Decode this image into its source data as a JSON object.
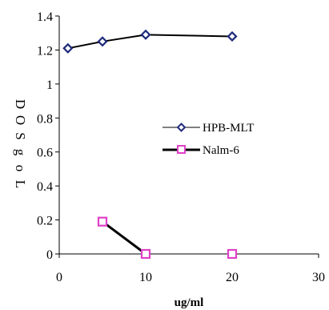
{
  "chart_data": {
    "type": "line",
    "xlabel": "ug/ml",
    "ylabel": "Log SOD",
    "xlim": [
      0,
      30
    ],
    "ylim": [
      0,
      1.4
    ],
    "xticks": [
      0,
      10,
      20,
      30
    ],
    "xtick_labels": [
      "0",
      "10",
      "20",
      "30"
    ],
    "yticks": [
      0,
      0.2,
      0.4,
      0.6,
      0.8,
      1.0,
      1.2,
      1.4
    ],
    "ytick_labels": [
      "0",
      "0.2",
      "0.4",
      "0.6",
      "0.8",
      "1",
      "1.2",
      "1.4"
    ],
    "grid": false,
    "legend_position": "right-middle",
    "series": [
      {
        "name": "HPB-MLT",
        "marker": "diamond",
        "line_color": "#000000",
        "marker_color": "#1f2a7a",
        "line_width": "thin",
        "x": [
          1,
          5,
          10,
          20
        ],
        "y": [
          1.21,
          1.25,
          1.29,
          1.28
        ]
      },
      {
        "name": "Nalm-6",
        "marker": "square",
        "line_color": "#000000",
        "marker_color": "#e040c8",
        "line_width": "thick",
        "x": [
          5,
          10,
          20
        ],
        "y": [
          0.19,
          0.0,
          0.0
        ],
        "segments_connected": [
          [
            5,
            10
          ]
        ]
      }
    ]
  }
}
